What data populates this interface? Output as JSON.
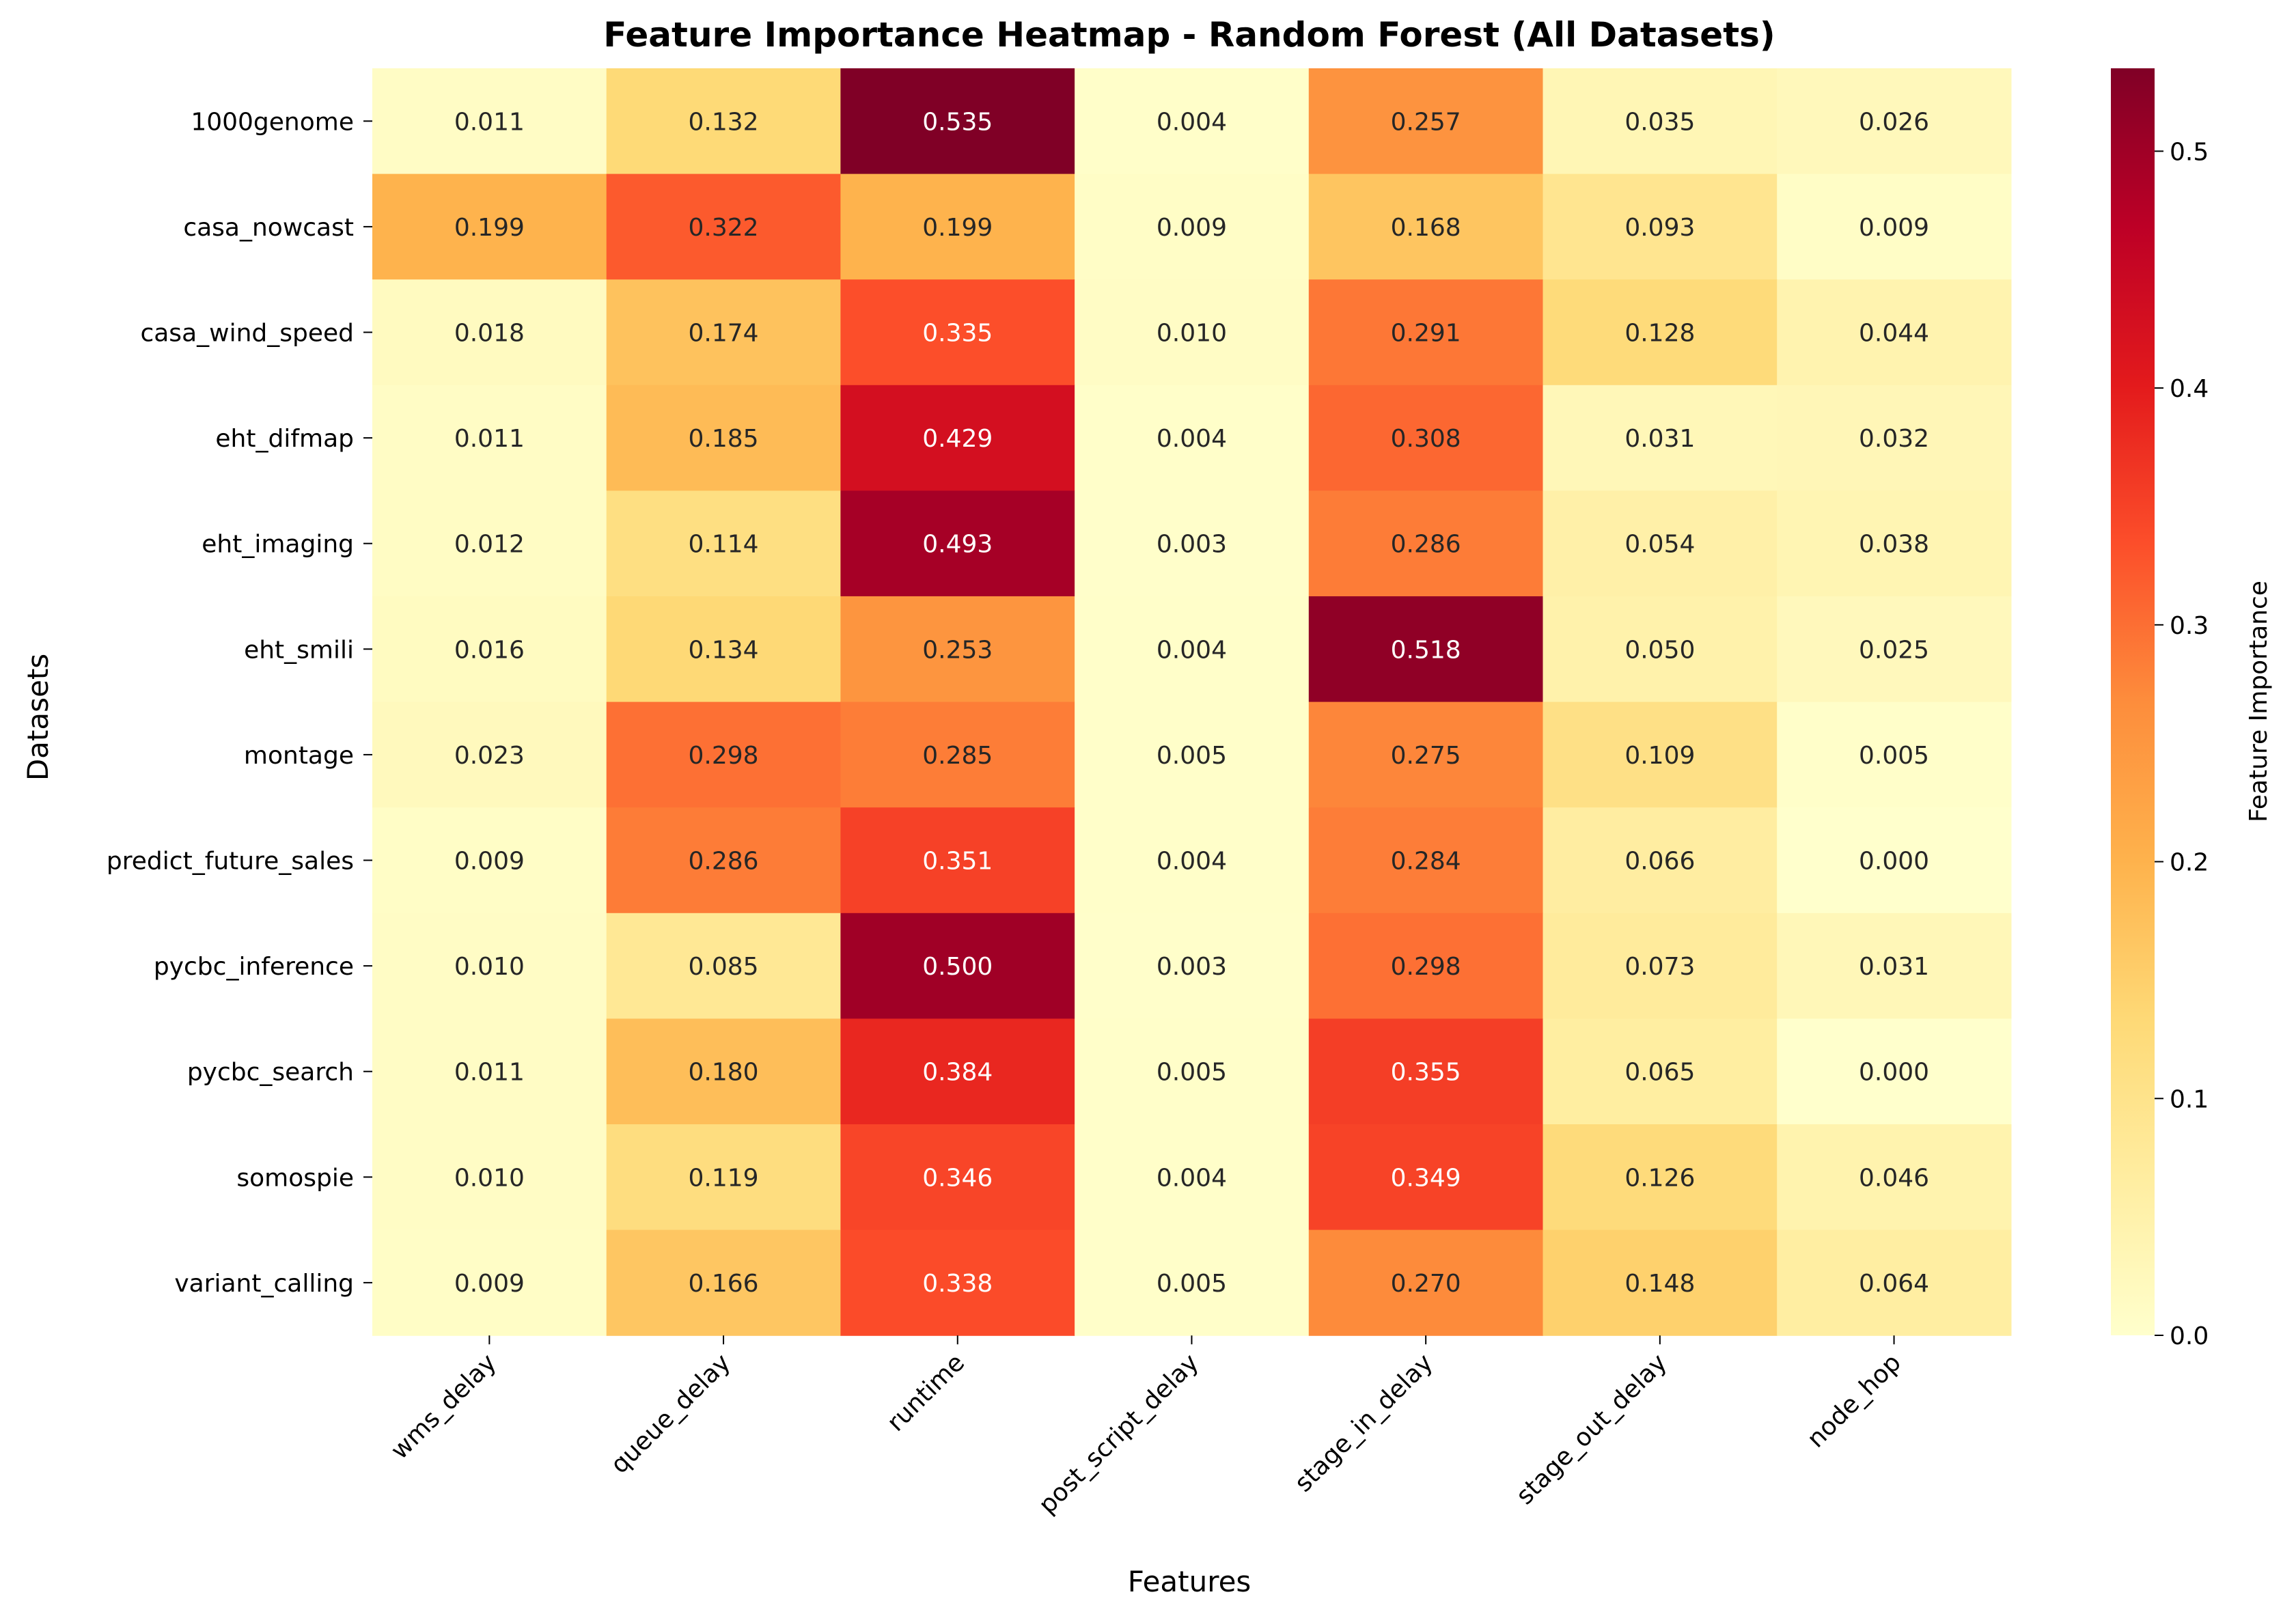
{
  "chart_data": {
    "type": "heatmap",
    "title": "Feature Importance Heatmap - Random Forest (All Datasets)",
    "xlabel": "Features",
    "ylabel": "Datasets",
    "colorbar_label": "Feature Importance",
    "colormap": "YlOrRd",
    "vmin": 0.0,
    "vmax": 0.535,
    "colorbar_ticks": [
      "0.0",
      "0.1",
      "0.2",
      "0.3",
      "0.4",
      "0.5"
    ],
    "colorbar_tick_values": [
      0.0,
      0.1,
      0.2,
      0.3,
      0.4,
      0.5
    ],
    "x_categories": [
      "wms_delay",
      "queue_delay",
      "runtime",
      "post_script_delay",
      "stage_in_delay",
      "stage_out_delay",
      "node_hop"
    ],
    "y_categories": [
      "1000genome",
      "casa_nowcast",
      "casa_wind_speed",
      "eht_difmap",
      "eht_imaging",
      "eht_smili",
      "montage",
      "predict_future_sales",
      "pycbc_inference",
      "pycbc_search",
      "somospie",
      "variant_calling"
    ],
    "values": [
      [
        0.011,
        0.132,
        0.535,
        0.004,
        0.257,
        0.035,
        0.026
      ],
      [
        0.199,
        0.322,
        0.199,
        0.009,
        0.168,
        0.093,
        0.009
      ],
      [
        0.018,
        0.174,
        0.335,
        0.01,
        0.291,
        0.128,
        0.044
      ],
      [
        0.011,
        0.185,
        0.429,
        0.004,
        0.308,
        0.031,
        0.032
      ],
      [
        0.012,
        0.114,
        0.493,
        0.003,
        0.286,
        0.054,
        0.038
      ],
      [
        0.016,
        0.134,
        0.253,
        0.004,
        0.518,
        0.05,
        0.025
      ],
      [
        0.023,
        0.298,
        0.285,
        0.005,
        0.275,
        0.109,
        0.005
      ],
      [
        0.009,
        0.286,
        0.351,
        0.004,
        0.284,
        0.066,
        0.0
      ],
      [
        0.01,
        0.085,
        0.5,
        0.003,
        0.298,
        0.073,
        0.031
      ],
      [
        0.011,
        0.18,
        0.384,
        0.005,
        0.355,
        0.065,
        0.0
      ],
      [
        0.01,
        0.119,
        0.346,
        0.004,
        0.349,
        0.126,
        0.046
      ],
      [
        0.009,
        0.166,
        0.338,
        0.005,
        0.27,
        0.148,
        0.064
      ]
    ],
    "value_labels": [
      [
        "0.011",
        "0.132",
        "0.535",
        "0.004",
        "0.257",
        "0.035",
        "0.026"
      ],
      [
        "0.199",
        "0.322",
        "0.199",
        "0.009",
        "0.168",
        "0.093",
        "0.009"
      ],
      [
        "0.018",
        "0.174",
        "0.335",
        "0.010",
        "0.291",
        "0.128",
        "0.044"
      ],
      [
        "0.011",
        "0.185",
        "0.429",
        "0.004",
        "0.308",
        "0.031",
        "0.032"
      ],
      [
        "0.012",
        "0.114",
        "0.493",
        "0.003",
        "0.286",
        "0.054",
        "0.038"
      ],
      [
        "0.016",
        "0.134",
        "0.253",
        "0.004",
        "0.518",
        "0.050",
        "0.025"
      ],
      [
        "0.023",
        "0.298",
        "0.285",
        "0.005",
        "0.275",
        "0.109",
        "0.005"
      ],
      [
        "0.009",
        "0.286",
        "0.351",
        "0.004",
        "0.284",
        "0.066",
        "0.000"
      ],
      [
        "0.010",
        "0.085",
        "0.500",
        "0.003",
        "0.298",
        "0.073",
        "0.031"
      ],
      [
        "0.011",
        "0.180",
        "0.384",
        "0.005",
        "0.355",
        "0.065",
        "0.000"
      ],
      [
        "0.010",
        "0.119",
        "0.346",
        "0.004",
        "0.349",
        "0.126",
        "0.046"
      ],
      [
        "0.009",
        "0.166",
        "0.338",
        "0.005",
        "0.270",
        "0.148",
        "0.064"
      ]
    ],
    "colors": {
      "text_dark": "#262626",
      "text_light": "#ffffff"
    }
  }
}
